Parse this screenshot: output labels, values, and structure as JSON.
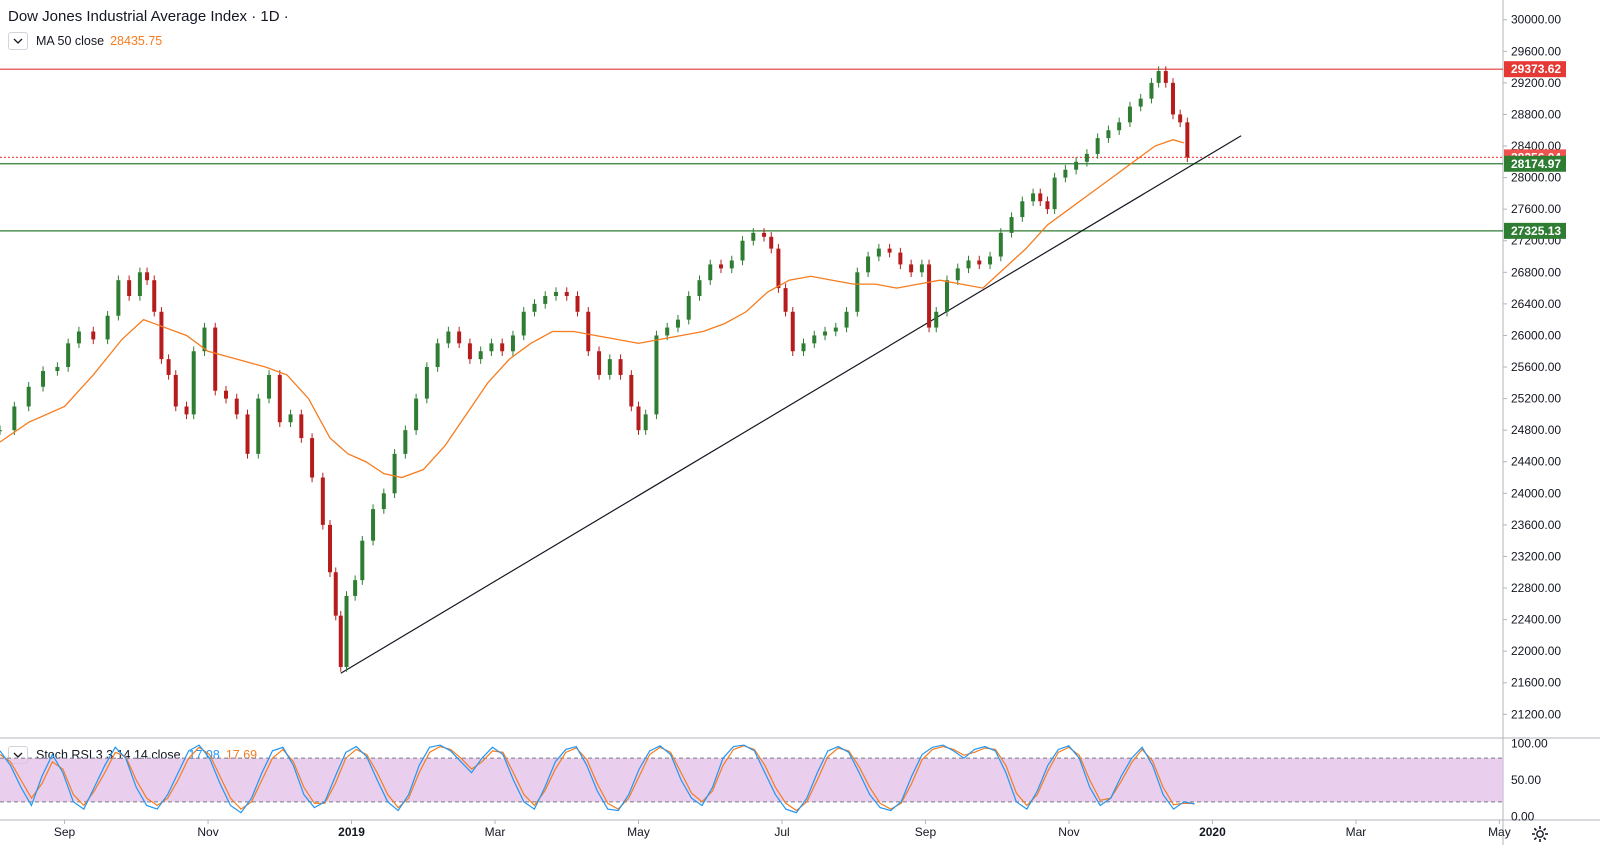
{
  "header": {
    "title": "Dow Jones Industrial Average Index · 1D ·",
    "ma_label": "MA 50 close",
    "ma_value": "28435.75"
  },
  "indicator": {
    "label": "Stoch RSI 3 3 14 14 close",
    "k_value": "17.08",
    "d_value": "17.69"
  },
  "colors": {
    "up": "#26a69a",
    "up_fill": "#2e7d32",
    "down": "#b71c1c",
    "ma": "#f57c1f",
    "stoch_k": "#2196f3",
    "stoch_d": "#f57c1f",
    "resistance": "#e53935",
    "support": "#2e7d32",
    "trendline": "#131722",
    "band_fill": "#e1bee7"
  },
  "price_tags": [
    {
      "label": "29373.62",
      "value": 29373.62,
      "color": "#e53935",
      "line": "solid-red"
    },
    {
      "label": "28256.04",
      "value": 28256.04,
      "color": "#ef5350",
      "line": "dotted-red"
    },
    {
      "label": "28174.97",
      "value": 28174.97,
      "color": "#2e7d32",
      "line": "solid-green"
    },
    {
      "label": "27325.13",
      "value": 27325.13,
      "color": "#2e7d32",
      "line": "solid-green"
    }
  ],
  "chart_data": {
    "type": "line",
    "title": "Dow Jones Industrial Average Index · 1D ·",
    "price_axis": {
      "ticks": [
        "30000.00",
        "29600.00",
        "29200.00",
        "28800.00",
        "28400.00",
        "28000.00",
        "27600.00",
        "27200.00",
        "26800.00",
        "26400.00",
        "26000.00",
        "25600.00",
        "25200.00",
        "24800.00",
        "24400.00",
        "24000.00",
        "23600.00",
        "23200.00",
        "22800.00",
        "22400.00",
        "22000.00",
        "21600.00",
        "21200.00"
      ],
      "ylim": [
        20900,
        30250
      ]
    },
    "time_axis": {
      "labels": [
        {
          "text": "Sep",
          "month_index": 0
        },
        {
          "text": "Nov",
          "month_index": 2
        },
        {
          "text": "2019",
          "month_index": 4,
          "bold": true
        },
        {
          "text": "Mar",
          "month_index": 6
        },
        {
          "text": "May",
          "month_index": 8
        },
        {
          "text": "Jul",
          "month_index": 10
        },
        {
          "text": "Sep",
          "month_index": 12
        },
        {
          "text": "Nov",
          "month_index": 14
        },
        {
          "text": "2020",
          "month_index": 16,
          "bold": true
        },
        {
          "text": "Mar",
          "month_index": 18
        },
        {
          "text": "May",
          "month_index": 20
        }
      ],
      "xlim_months": [
        -0.9,
        20.05
      ]
    },
    "series": [
      {
        "name": "Dow Jones Industrial Average Index",
        "kind": "close",
        "points": [
          [
            -0.9,
            24800
          ],
          [
            -0.7,
            25100
          ],
          [
            -0.5,
            25350
          ],
          [
            -0.3,
            25550
          ],
          [
            -0.1,
            25600
          ],
          [
            0.05,
            25900
          ],
          [
            0.2,
            26050
          ],
          [
            0.4,
            25950
          ],
          [
            0.6,
            26250
          ],
          [
            0.75,
            26700
          ],
          [
            0.9,
            26500
          ],
          [
            1.05,
            26800
          ],
          [
            1.15,
            26700
          ],
          [
            1.25,
            26300
          ],
          [
            1.35,
            25700
          ],
          [
            1.45,
            25500
          ],
          [
            1.55,
            25100
          ],
          [
            1.7,
            25000
          ],
          [
            1.8,
            25800
          ],
          [
            1.95,
            26100
          ],
          [
            2.1,
            25300
          ],
          [
            2.25,
            25200
          ],
          [
            2.4,
            25000
          ],
          [
            2.55,
            24500
          ],
          [
            2.7,
            25200
          ],
          [
            2.85,
            25500
          ],
          [
            3.0,
            24900
          ],
          [
            3.15,
            25000
          ],
          [
            3.3,
            24700
          ],
          [
            3.45,
            24200
          ],
          [
            3.6,
            23600
          ],
          [
            3.7,
            23000
          ],
          [
            3.78,
            22450
          ],
          [
            3.85,
            21800
          ],
          [
            3.93,
            22700
          ],
          [
            4.05,
            22900
          ],
          [
            4.15,
            23400
          ],
          [
            4.3,
            23800
          ],
          [
            4.45,
            24000
          ],
          [
            4.6,
            24500
          ],
          [
            4.75,
            24800
          ],
          [
            4.9,
            25200
          ],
          [
            5.05,
            25600
          ],
          [
            5.2,
            25900
          ],
          [
            5.35,
            26050
          ],
          [
            5.5,
            25900
          ],
          [
            5.65,
            25700
          ],
          [
            5.8,
            25800
          ],
          [
            5.95,
            25900
          ],
          [
            6.1,
            25800
          ],
          [
            6.25,
            26000
          ],
          [
            6.4,
            26300
          ],
          [
            6.55,
            26400
          ],
          [
            6.7,
            26500
          ],
          [
            6.85,
            26550
          ],
          [
            7.0,
            26500
          ],
          [
            7.15,
            26300
          ],
          [
            7.3,
            25800
          ],
          [
            7.45,
            25500
          ],
          [
            7.6,
            25700
          ],
          [
            7.75,
            25500
          ],
          [
            7.9,
            25100
          ],
          [
            8.0,
            24800
          ],
          [
            8.1,
            25000
          ],
          [
            8.25,
            26000
          ],
          [
            8.4,
            26100
          ],
          [
            8.55,
            26200
          ],
          [
            8.7,
            26500
          ],
          [
            8.85,
            26700
          ],
          [
            9.0,
            26900
          ],
          [
            9.15,
            26850
          ],
          [
            9.3,
            26950
          ],
          [
            9.45,
            27200
          ],
          [
            9.6,
            27300
          ],
          [
            9.75,
            27250
          ],
          [
            9.85,
            27100
          ],
          [
            9.95,
            26600
          ],
          [
            10.05,
            26300
          ],
          [
            10.15,
            25800
          ],
          [
            10.3,
            25900
          ],
          [
            10.45,
            26000
          ],
          [
            10.6,
            26050
          ],
          [
            10.75,
            26100
          ],
          [
            10.9,
            26300
          ],
          [
            11.05,
            26800
          ],
          [
            11.2,
            27000
          ],
          [
            11.35,
            27100
          ],
          [
            11.5,
            27050
          ],
          [
            11.65,
            26900
          ],
          [
            11.8,
            26800
          ],
          [
            11.95,
            26900
          ],
          [
            12.05,
            26100
          ],
          [
            12.15,
            26300
          ],
          [
            12.3,
            26700
          ],
          [
            12.45,
            26850
          ],
          [
            12.6,
            26950
          ],
          [
            12.75,
            26900
          ],
          [
            12.9,
            27000
          ],
          [
            13.05,
            27300
          ],
          [
            13.2,
            27500
          ],
          [
            13.35,
            27700
          ],
          [
            13.5,
            27800
          ],
          [
            13.6,
            27700
          ],
          [
            13.7,
            27600
          ],
          [
            13.8,
            28000
          ],
          [
            13.95,
            28100
          ],
          [
            14.1,
            28200
          ],
          [
            14.25,
            28300
          ],
          [
            14.4,
            28500
          ],
          [
            14.55,
            28600
          ],
          [
            14.7,
            28700
          ],
          [
            14.85,
            28900
          ],
          [
            15.0,
            29000
          ],
          [
            15.15,
            29200
          ],
          [
            15.25,
            29350
          ],
          [
            15.35,
            29200
          ],
          [
            15.45,
            28800
          ],
          [
            15.55,
            28700
          ],
          [
            15.65,
            28256
          ]
        ]
      },
      {
        "name": "MA 50 close",
        "points": [
          [
            -0.9,
            24650
          ],
          [
            -0.5,
            24900
          ],
          [
            0.0,
            25100
          ],
          [
            0.4,
            25500
          ],
          [
            0.8,
            25950
          ],
          [
            1.1,
            26200
          ],
          [
            1.4,
            26100
          ],
          [
            1.7,
            26000
          ],
          [
            2.0,
            25800
          ],
          [
            2.4,
            25700
          ],
          [
            2.8,
            25600
          ],
          [
            3.1,
            25500
          ],
          [
            3.4,
            25200
          ],
          [
            3.7,
            24700
          ],
          [
            3.95,
            24500
          ],
          [
            4.2,
            24400
          ],
          [
            4.45,
            24250
          ],
          [
            4.7,
            24200
          ],
          [
            5.0,
            24300
          ],
          [
            5.3,
            24600
          ],
          [
            5.6,
            25000
          ],
          [
            5.9,
            25400
          ],
          [
            6.2,
            25700
          ],
          [
            6.5,
            25900
          ],
          [
            6.8,
            26050
          ],
          [
            7.1,
            26050
          ],
          [
            7.4,
            26000
          ],
          [
            7.7,
            25950
          ],
          [
            8.0,
            25900
          ],
          [
            8.3,
            25950
          ],
          [
            8.6,
            26000
          ],
          [
            8.9,
            26050
          ],
          [
            9.2,
            26150
          ],
          [
            9.5,
            26300
          ],
          [
            9.8,
            26550
          ],
          [
            10.1,
            26700
          ],
          [
            10.4,
            26750
          ],
          [
            10.7,
            26700
          ],
          [
            11.0,
            26650
          ],
          [
            11.3,
            26650
          ],
          [
            11.6,
            26600
          ],
          [
            11.9,
            26650
          ],
          [
            12.2,
            26700
          ],
          [
            12.5,
            26650
          ],
          [
            12.8,
            26600
          ],
          [
            13.1,
            26850
          ],
          [
            13.4,
            27100
          ],
          [
            13.7,
            27400
          ],
          [
            14.0,
            27600
          ],
          [
            14.3,
            27800
          ],
          [
            14.6,
            28000
          ],
          [
            14.9,
            28200
          ],
          [
            15.2,
            28400
          ],
          [
            15.45,
            28480
          ],
          [
            15.6,
            28440
          ]
        ]
      }
    ],
    "annotations": [
      {
        "type": "trendline",
        "from": [
          3.85,
          21720
        ],
        "to": [
          16.4,
          28530
        ]
      }
    ],
    "stoch_rsi": {
      "ylim": [
        -5,
        105
      ],
      "ticks": [
        "100.00",
        "50.00",
        "0.00"
      ],
      "band": [
        20,
        80
      ],
      "k": [
        90,
        70,
        40,
        15,
        55,
        85,
        60,
        20,
        10,
        40,
        70,
        95,
        80,
        40,
        15,
        10,
        30,
        60,
        90,
        98,
        80,
        45,
        15,
        5,
        25,
        60,
        90,
        95,
        70,
        30,
        12,
        20,
        55,
        88,
        96,
        82,
        50,
        20,
        8,
        30,
        70,
        95,
        98,
        90,
        75,
        60,
        80,
        95,
        85,
        50,
        20,
        10,
        40,
        75,
        92,
        96,
        70,
        35,
        10,
        8,
        30,
        65,
        90,
        97,
        85,
        50,
        25,
        15,
        40,
        80,
        96,
        98,
        90,
        60,
        30,
        10,
        5,
        25,
        60,
        90,
        96,
        88,
        60,
        30,
        12,
        8,
        20,
        55,
        85,
        95,
        98,
        90,
        80,
        92,
        96,
        90,
        60,
        20,
        10,
        35,
        70,
        92,
        97,
        80,
        40,
        15,
        25,
        55,
        80,
        95,
        70,
        30,
        10,
        20,
        17
      ],
      "d": [
        85,
        75,
        50,
        25,
        45,
        75,
        65,
        30,
        15,
        35,
        60,
        88,
        82,
        50,
        25,
        15,
        25,
        50,
        80,
        95,
        85,
        55,
        25,
        10,
        20,
        50,
        80,
        92,
        75,
        40,
        18,
        18,
        45,
        80,
        92,
        85,
        60,
        30,
        12,
        25,
        60,
        88,
        96,
        92,
        80,
        65,
        75,
        90,
        88,
        60,
        30,
        15,
        35,
        65,
        88,
        94,
        78,
        45,
        18,
        10,
        25,
        55,
        85,
        95,
        88,
        60,
        32,
        20,
        35,
        70,
        92,
        97,
        92,
        70,
        40,
        18,
        8,
        20,
        50,
        82,
        94,
        90,
        68,
        40,
        18,
        10,
        18,
        45,
        78,
        92,
        96,
        92,
        84,
        88,
        94,
        92,
        70,
        32,
        15,
        30,
        62,
        88,
        95,
        84,
        50,
        22,
        25,
        48,
        74,
        92,
        76,
        40,
        16,
        18,
        17.69
      ]
    },
    "legend": "top-left",
    "grid": false
  }
}
